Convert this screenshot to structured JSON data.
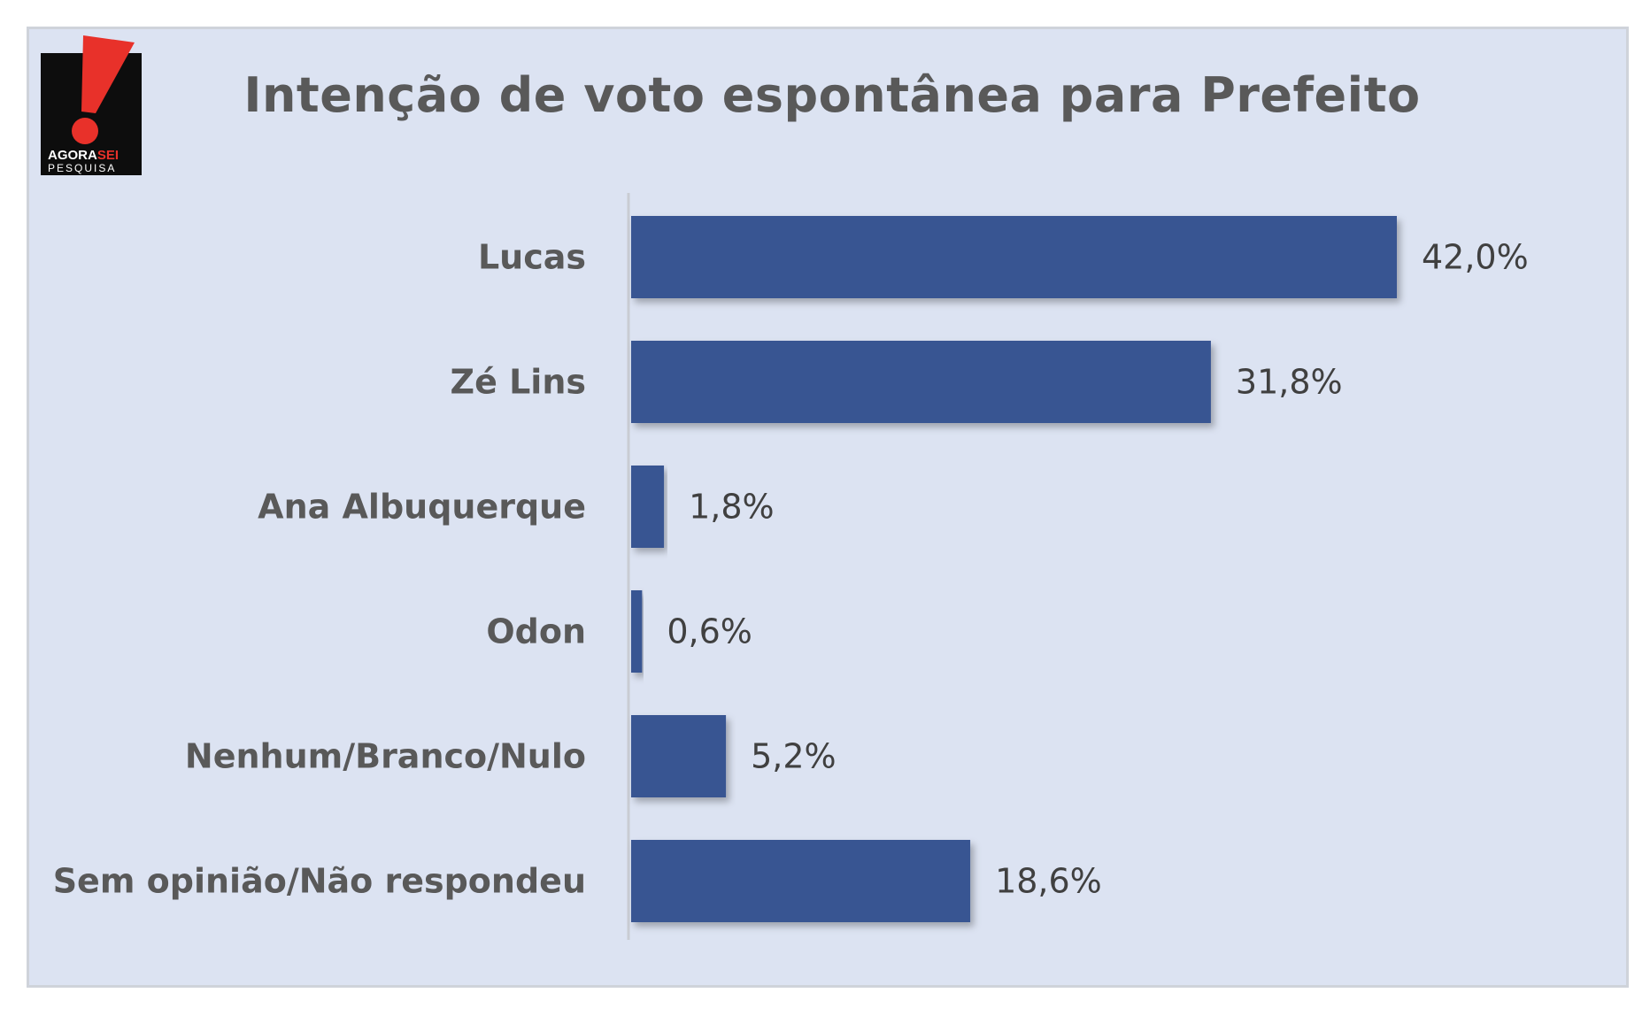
{
  "logo": {
    "line1_a": "AGORA",
    "line1_b": "SEI",
    "line2": "PESQUISA"
  },
  "colors": {
    "bar": "#385492",
    "background": "#dce3f2",
    "logo_red": "#e8312a"
  },
  "chart_data": {
    "type": "bar",
    "orientation": "horizontal",
    "title": "Intenção de voto espontânea para Prefeito",
    "categories": [
      "Lucas",
      "Zé Lins",
      "Ana Albuquerque",
      "Odon",
      "Nenhum/Branco/Nulo",
      "Sem opinião/Não respondeu"
    ],
    "values": [
      42.0,
      31.8,
      1.8,
      0.6,
      5.2,
      18.6
    ],
    "value_labels": [
      "42,0%",
      "31,8%",
      "1,8%",
      "0,6%",
      "5,2%",
      "18,6%"
    ],
    "unit": "%",
    "xlim": [
      0,
      42.0
    ],
    "grid": false,
    "legend": "none"
  }
}
